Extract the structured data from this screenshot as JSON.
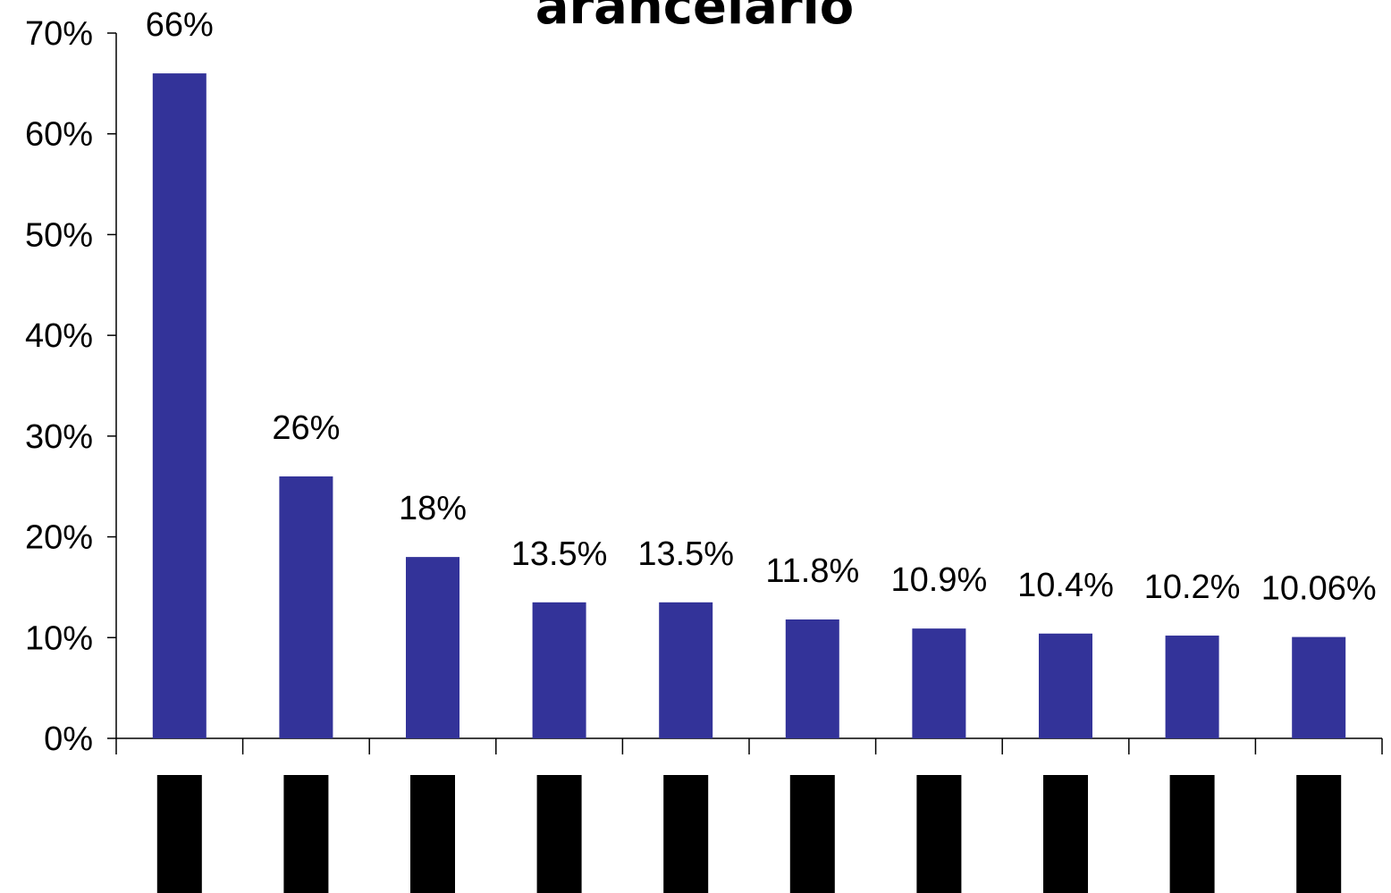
{
  "chart_data": {
    "type": "bar",
    "title": "arancelario",
    "categories": [
      "",
      "",
      "",
      "",
      "",
      "",
      "",
      "",
      "",
      ""
    ],
    "values": [
      66,
      26,
      18,
      13.5,
      13.5,
      11.8,
      10.9,
      10.4,
      10.2,
      10.06
    ],
    "data_labels": [
      "66%",
      "26%",
      "18%",
      "13.5%",
      "13.5%",
      "11.8%",
      "10.9%",
      "10.4%",
      "10.2%",
      "10.06%"
    ],
    "ylim": [
      0,
      70
    ],
    "yticks": [
      0,
      10,
      20,
      30,
      40,
      50,
      60,
      70
    ],
    "ytick_labels": [
      "0%",
      "10%",
      "20%",
      "30%",
      "40%",
      "50%",
      "60%",
      "70%"
    ],
    "xlabel": "",
    "ylabel": "",
    "grid": false,
    "legend": "none",
    "bar_color": "#333399",
    "category_marker_color": "#000000"
  }
}
